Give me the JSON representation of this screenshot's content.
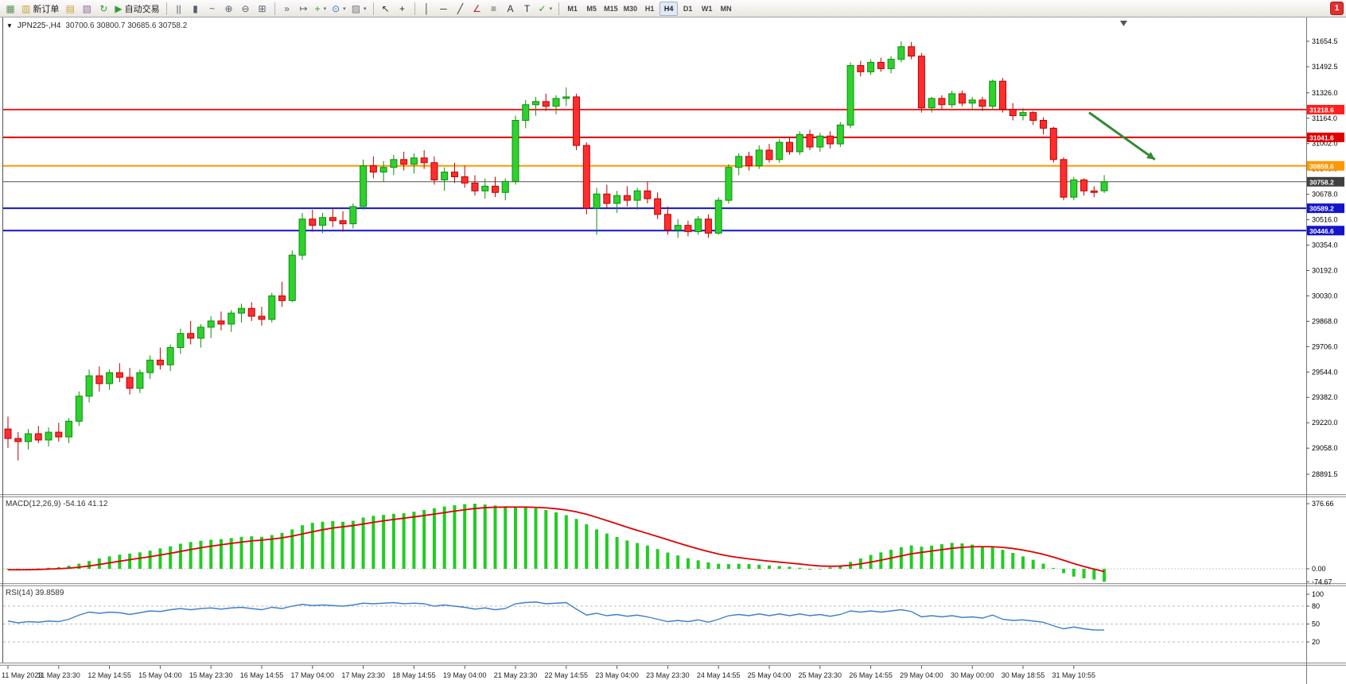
{
  "toolbar": {
    "notification_badge": "1",
    "timeframes": [
      "M1",
      "M5",
      "M15",
      "M30",
      "H1",
      "H4",
      "D1",
      "W1",
      "MN"
    ],
    "active_timeframe": "H4",
    "items": [
      {
        "name": "new-chart-icon",
        "glyph": "▦",
        "color": "#5a8f5a"
      },
      {
        "name": "new-order-button",
        "glyph": "▥",
        "color": "#caa23a",
        "label": "新订单"
      },
      {
        "name": "market-watch-icon",
        "glyph": "▤",
        "color": "#caa23a"
      },
      {
        "name": "data-window-icon",
        "glyph": "▧",
        "color": "#8a6d9c"
      },
      {
        "name": "refresh-icon",
        "glyph": "↻",
        "color": "#2f9e2f"
      },
      {
        "name": "auto-trading-button",
        "glyph": "▶",
        "color": "#2f9e2f",
        "label": "自动交易"
      },
      {
        "type": "sep"
      },
      {
        "name": "bar-chart-type-icon",
        "glyph": "||",
        "color": "#55606e"
      },
      {
        "name": "candlestick-chart-type-icon",
        "glyph": "▮",
        "color": "#55606e"
      },
      {
        "name": "line-chart-type-icon",
        "glyph": "~",
        "color": "#55606e"
      },
      {
        "name": "zoom-in-icon",
        "glyph": "⊕",
        "color": "#55606e"
      },
      {
        "name": "zoom-out-icon",
        "glyph": "⊖",
        "color": "#55606e"
      },
      {
        "name": "tile-windows-icon",
        "glyph": "⊞",
        "color": "#55606e"
      },
      {
        "type": "sep"
      },
      {
        "name": "auto-scroll-icon",
        "glyph": "»",
        "color": "#55606e"
      },
      {
        "name": "chart-shift-icon",
        "glyph": "↦",
        "color": "#55606e"
      },
      {
        "name": "indicators-icon",
        "glyph": "+",
        "color": "#2f9e2f",
        "dropdown": true
      },
      {
        "name": "periods-icon",
        "glyph": "⊙",
        "color": "#3a6fc4",
        "dropdown": true
      },
      {
        "name": "templates-icon",
        "glyph": "▨",
        "color": "#777777",
        "dropdown": true
      },
      {
        "type": "sep"
      },
      {
        "name": "cursor-icon",
        "glyph": "↖",
        "color": "#333333"
      },
      {
        "name": "crosshair-icon",
        "glyph": "+",
        "color": "#333333"
      },
      {
        "type": "sep"
      },
      {
        "name": "vertical-line-icon",
        "glyph": "│",
        "color": "#333333"
      },
      {
        "name": "horizontal-line-icon",
        "glyph": "─",
        "color": "#333333"
      },
      {
        "name": "trendline-icon",
        "glyph": "╱",
        "color": "#333333"
      },
      {
        "name": "equidistant-channel-icon",
        "glyph": "∠",
        "color": "#a33333"
      },
      {
        "name": "fibonacci-icon",
        "glyph": "≡",
        "color": "#555555"
      },
      {
        "name": "text-icon",
        "glyph": "A",
        "color": "#333333"
      },
      {
        "name": "text-label-icon",
        "glyph": "T",
        "color": "#333333"
      },
      {
        "name": "arrows-tool-icon",
        "glyph": "✓",
        "color": "#2f9e2f",
        "dropdown": true
      },
      {
        "type": "sep"
      }
    ]
  },
  "chart": {
    "symbol_label": "JPN225-,H4",
    "ohlc_label": "30700.6 30800.7 30685.6 30758.2",
    "colors": {
      "bull": "#2fd12f",
      "bull_edge": "#0b8f0b",
      "bear": "#ff2e2e",
      "bear_edge": "#bb0000",
      "macd_hist": "#22cc22",
      "macd_signal": "#e00000",
      "rsi": "#3f7fca",
      "arrow": "#338a33",
      "current_price_badge": "#404040"
    }
  },
  "chart_data": [
    {
      "type": "candlestick",
      "symbol": "JPN225-",
      "timeframe": "H4",
      "ohlc_current": {
        "open": 30700.6,
        "high": 30800.7,
        "low": 30685.6,
        "close": 30758.2
      },
      "ylim": [
        28891.5,
        31654.5
      ],
      "y_ticks": [
        "31654.5",
        "31492.5",
        "31326.0",
        "31164.0",
        "31002.0",
        "30840.0",
        "30678.0",
        "30516.0",
        "30354.0",
        "30192.0",
        "30030.0",
        "29868.0",
        "29706.0",
        "29544.0",
        "29382.0",
        "29220.0",
        "29058.0",
        "28891.5"
      ],
      "hlines": [
        {
          "price": 31218.6,
          "label": "31218.6",
          "color": "#ff2020",
          "width": 2
        },
        {
          "price": 31041.6,
          "label": "31041.6",
          "color": "#e00000",
          "width": 2
        },
        {
          "price": 30859.6,
          "label": "30859.6",
          "color": "#ff9800",
          "width": 2
        },
        {
          "price": 30758.2,
          "label": "30758.2",
          "color": "#505050",
          "width": 1,
          "role": "current-price",
          "badge": "#404040"
        },
        {
          "price": 30589.2,
          "label": "30589.2",
          "color": "#1414cc",
          "width": 2
        },
        {
          "price": 30446.6,
          "label": "30446.6",
          "color": "#1414cc",
          "width": 2
        }
      ],
      "arrow": {
        "from_bar": 106.5,
        "from_price": 31200,
        "to_bar": 113,
        "to_price": 30900,
        "width": 3
      },
      "candles": [
        [
          29180,
          29260,
          29060,
          29120
        ],
        [
          29120,
          29160,
          28980,
          29100
        ],
        [
          29100,
          29180,
          29050,
          29150
        ],
        [
          29150,
          29200,
          29090,
          29110
        ],
        [
          29110,
          29190,
          29070,
          29160
        ],
        [
          29160,
          29220,
          29100,
          29130
        ],
        [
          29130,
          29250,
          29090,
          29230
        ],
        [
          29230,
          29420,
          29200,
          29390
        ],
        [
          29390,
          29560,
          29350,
          29520
        ],
        [
          29520,
          29580,
          29420,
          29470
        ],
        [
          29470,
          29560,
          29430,
          29540
        ],
        [
          29540,
          29600,
          29480,
          29510
        ],
        [
          29510,
          29570,
          29400,
          29440
        ],
        [
          29440,
          29560,
          29410,
          29540
        ],
        [
          29540,
          29650,
          29500,
          29620
        ],
        [
          29620,
          29700,
          29560,
          29590
        ],
        [
          29590,
          29720,
          29550,
          29700
        ],
        [
          29700,
          29820,
          29660,
          29790
        ],
        [
          29790,
          29870,
          29720,
          29760
        ],
        [
          29760,
          29850,
          29700,
          29830
        ],
        [
          29830,
          29900,
          29760,
          29870
        ],
        [
          29870,
          29930,
          29810,
          29850
        ],
        [
          29850,
          29940,
          29800,
          29920
        ],
        [
          29920,
          29980,
          29860,
          29950
        ],
        [
          29950,
          29990,
          29870,
          29900
        ],
        [
          29900,
          29960,
          29840,
          29880
        ],
        [
          29880,
          30050,
          29860,
          30030
        ],
        [
          30030,
          30120,
          29960,
          30000
        ],
        [
          30000,
          30320,
          29990,
          30290
        ],
        [
          30290,
          30560,
          30260,
          30520
        ],
        [
          30520,
          30580,
          30440,
          30480
        ],
        [
          30480,
          30560,
          30430,
          30530
        ],
        [
          30530,
          30590,
          30470,
          30510
        ],
        [
          30510,
          30570,
          30440,
          30490
        ],
        [
          30490,
          30620,
          30460,
          30600
        ],
        [
          30600,
          30900,
          30580,
          30860
        ],
        [
          30860,
          30920,
          30780,
          30820
        ],
        [
          30820,
          30890,
          30760,
          30850
        ],
        [
          30850,
          30930,
          30800,
          30900
        ],
        [
          30900,
          30950,
          30830,
          30870
        ],
        [
          30870,
          30940,
          30810,
          30910
        ],
        [
          30910,
          30960,
          30840,
          30880
        ],
        [
          30880,
          30920,
          30740,
          30770
        ],
        [
          30770,
          30850,
          30700,
          30820
        ],
        [
          30820,
          30880,
          30750,
          30790
        ],
        [
          30790,
          30860,
          30720,
          30750
        ],
        [
          30750,
          30800,
          30670,
          30700
        ],
        [
          30700,
          30780,
          30650,
          30730
        ],
        [
          30730,
          30790,
          30660,
          30690
        ],
        [
          30690,
          30780,
          30640,
          30760
        ],
        [
          30760,
          31180,
          30740,
          31150
        ],
        [
          31150,
          31280,
          31100,
          31250
        ],
        [
          31250,
          31300,
          31180,
          31270
        ],
        [
          31270,
          31320,
          31210,
          31240
        ],
        [
          31240,
          31310,
          31190,
          31290
        ],
        [
          31290,
          31360,
          31240,
          31300
        ],
        [
          31300,
          31320,
          30960,
          30990
        ],
        [
          30990,
          31010,
          30550,
          30590
        ],
        [
          30590,
          30720,
          30420,
          30680
        ],
        [
          30680,
          30740,
          30590,
          30620
        ],
        [
          30620,
          30700,
          30560,
          30670
        ],
        [
          30670,
          30730,
          30600,
          30640
        ],
        [
          30640,
          30720,
          30580,
          30700
        ],
        [
          30700,
          30760,
          30620,
          30650
        ],
        [
          30650,
          30690,
          30520,
          30550
        ],
        [
          30550,
          30600,
          30420,
          30450
        ],
        [
          30450,
          30520,
          30400,
          30480
        ],
        [
          30480,
          30510,
          30410,
          30440
        ],
        [
          30440,
          30540,
          30420,
          30520
        ],
        [
          30520,
          30550,
          30400,
          30430
        ],
        [
          30430,
          30660,
          30420,
          30640
        ],
        [
          30640,
          30870,
          30620,
          30850
        ],
        [
          30850,
          30940,
          30800,
          30920
        ],
        [
          30920,
          30950,
          30830,
          30860
        ],
        [
          30860,
          30990,
          30840,
          30960
        ],
        [
          30960,
          31000,
          30880,
          30900
        ],
        [
          30900,
          31030,
          30880,
          31010
        ],
        [
          31010,
          31040,
          30930,
          30950
        ],
        [
          30950,
          31080,
          30930,
          31060
        ],
        [
          31060,
          31090,
          30960,
          30980
        ],
        [
          30980,
          31070,
          30950,
          31050
        ],
        [
          31050,
          31080,
          30970,
          31000
        ],
        [
          31000,
          31140,
          30980,
          31120
        ],
        [
          31120,
          31520,
          31100,
          31500
        ],
        [
          31500,
          31530,
          31430,
          31460
        ],
        [
          31460,
          31540,
          31440,
          31520
        ],
        [
          31520,
          31550,
          31460,
          31480
        ],
        [
          31480,
          31560,
          31450,
          31540
        ],
        [
          31540,
          31654,
          31520,
          31620
        ],
        [
          31620,
          31650,
          31540,
          31560
        ],
        [
          31560,
          31580,
          31200,
          31230
        ],
        [
          31230,
          31300,
          31200,
          31290
        ],
        [
          31290,
          31310,
          31220,
          31250
        ],
        [
          31250,
          31340,
          31230,
          31320
        ],
        [
          31320,
          31340,
          31240,
          31260
        ],
        [
          31260,
          31300,
          31220,
          31280
        ],
        [
          31280,
          31300,
          31210,
          31240
        ],
        [
          31240,
          31410,
          31220,
          31400
        ],
        [
          31400,
          31420,
          31200,
          31220
        ],
        [
          31220,
          31260,
          31150,
          31180
        ],
        [
          31180,
          31230,
          31150,
          31200
        ],
        [
          31200,
          31210,
          31120,
          31150
        ],
        [
          31150,
          31170,
          31060,
          31100
        ],
        [
          31100,
          31110,
          30880,
          30900
        ],
        [
          30900,
          30915,
          30640,
          30660
        ],
        [
          30660,
          30790,
          30640,
          30770
        ],
        [
          30770,
          30780,
          30670,
          30700
        ],
        [
          30700,
          30730,
          30660,
          30690
        ],
        [
          30700.6,
          30800.7,
          30685.6,
          30758.2
        ]
      ]
    },
    {
      "type": "macd",
      "label": "MACD(12,26,9) -54.16 41.12",
      "params": "12,26,9",
      "value": -54.16,
      "signal_value": 41.12,
      "ticks": [
        {
          "v": 376.66,
          "label": "376.66"
        },
        {
          "v": 0,
          "label": "0.00"
        },
        {
          "v": -74.67,
          "label": "-74.67"
        }
      ],
      "histogram": [
        -5,
        -8,
        -4,
        2,
        6,
        10,
        18,
        30,
        45,
        60,
        72,
        82,
        88,
        95,
        105,
        118,
        130,
        145,
        155,
        162,
        168,
        172,
        178,
        185,
        188,
        185,
        195,
        208,
        228,
        252,
        266,
        272,
        276,
        272,
        278,
        296,
        306,
        312,
        318,
        321,
        330,
        340,
        350,
        360,
        368,
        374,
        376.66,
        372,
        366,
        361,
        358,
        356,
        350,
        340,
        326,
        310,
        288,
        258,
        228,
        204,
        184,
        164,
        149,
        134,
        114,
        94,
        77,
        61,
        49,
        37,
        29,
        27,
        29,
        27,
        24,
        19,
        16,
        12,
        6,
        -5,
        -3,
        8,
        20,
        40,
        60,
        80,
        95,
        110,
        125,
        135,
        128,
        134,
        142,
        150,
        147,
        140,
        130,
        125,
        110,
        92,
        72,
        52,
        30,
        5,
        -25,
        -45,
        -55,
        -62,
        -74.67
      ]
    },
    {
      "type": "rsi",
      "label": "RSI(14) 39.8589",
      "period": 14,
      "value": 39.8589,
      "ticks": [
        {
          "v": 100,
          "label": "100"
        },
        {
          "v": 80,
          "label": "80"
        },
        {
          "v": 50,
          "label": "50"
        },
        {
          "v": 20,
          "label": "20"
        }
      ],
      "levels": [
        80,
        50,
        20
      ],
      "values": [
        55,
        52,
        54,
        53,
        55,
        54,
        58,
        65,
        70,
        68,
        70,
        69,
        66,
        69,
        72,
        71,
        74,
        76,
        74,
        76,
        77,
        75,
        77,
        78,
        76,
        74,
        78,
        76,
        80,
        83,
        81,
        82,
        81,
        80,
        82,
        85,
        84,
        85,
        86,
        84,
        85,
        84,
        80,
        82,
        80,
        78,
        75,
        77,
        74,
        76,
        84,
        86,
        87,
        84,
        85,
        86,
        75,
        65,
        68,
        64,
        66,
        63,
        65,
        62,
        58,
        54,
        56,
        54,
        57,
        53,
        58,
        64,
        66,
        64,
        67,
        64,
        67,
        64,
        67,
        64,
        66,
        63,
        66,
        72,
        70,
        72,
        70,
        72,
        74,
        71,
        62,
        64,
        62,
        64,
        61,
        62,
        60,
        65,
        58,
        56,
        57,
        55,
        53,
        47,
        42,
        45,
        42,
        40,
        39.86
      ]
    }
  ],
  "time_axis": {
    "labels": [
      "11 May 2023",
      "11 May 23:30",
      "12 May 14:55",
      "15 May 04:00",
      "15 May 23:30",
      "16 May 14:55",
      "17 May 04:00",
      "17 May 23:30",
      "18 May 14:55",
      "19 May 04:00",
      "21 May 23:30",
      "22 May 14:55",
      "23 May 04:00",
      "23 May 23:30",
      "24 May 14:55",
      "25 May 04:00",
      "25 May 23:30",
      "26 May 14:55",
      "29 May 04:00",
      "30 May 00:00",
      "30 May 18:55",
      "31 May 10:55"
    ]
  }
}
